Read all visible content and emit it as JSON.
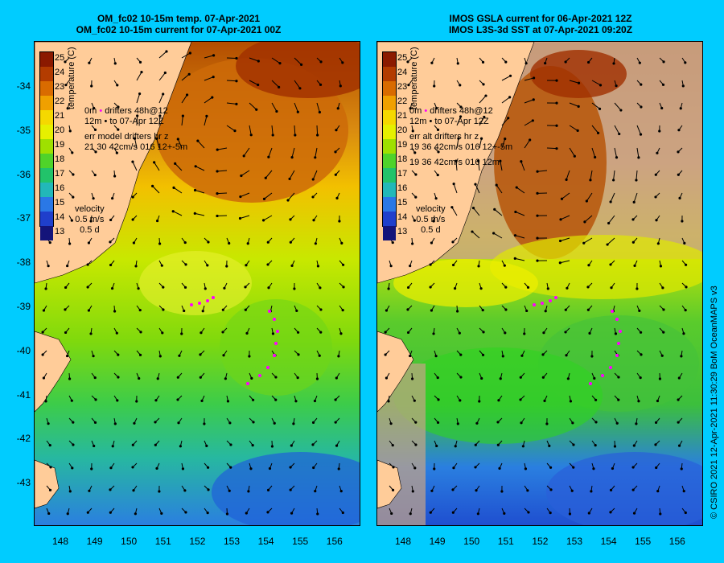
{
  "left": {
    "title_line1": "OM_fc02 10-15m temp. 07-Apr-2021",
    "title_line2": "OM_fc02 10-15m current for 07-Apr-2021 00Z",
    "legend_drifters": "drifters 48h@12",
    "legend_to": "to 07-Apr 12Z",
    "legend_err1": "err model drifters hr z",
    "legend_err2": "21 30 42cm/s 016 12+-5m",
    "legend_depth_label": "0m",
    "legend_depth_label2": "12m"
  },
  "right": {
    "title_line1": "IMOS GSLA current for 06-Apr-2021 12Z",
    "title_line2": "IMOS L3S-3d SST at 07-Apr-2021 09:20Z",
    "legend_drifters": "drifters 48h@12",
    "legend_to": "to 07-Apr 12Z",
    "legend_err1": "err alt drifters hr z",
    "legend_err2": "19 36 42cm/s 016 12+-5m",
    "legend_err3": "19 36 42cm/s 016 12m",
    "legend_depth_label": "0m",
    "legend_depth_label2": "12m"
  },
  "colorbar": {
    "title": "temperature (C)",
    "labels": [
      "25",
      "24",
      "23",
      "22",
      "21",
      "20",
      "19",
      "18",
      "17",
      "16",
      "15",
      "14",
      "13"
    ],
    "colors": [
      "#8b1a00",
      "#b33c00",
      "#d96b00",
      "#f0a000",
      "#f5d800",
      "#e6f000",
      "#9fe000",
      "#4fd32a",
      "#22c36a",
      "#22b8b8",
      "#2a78e6",
      "#1f3fcc",
      "#14147a"
    ]
  },
  "velocity": {
    "label": "velocity",
    "speed": "0.5 m/s",
    "duration": "0.5 d"
  },
  "y_ticks": [
    "-34",
    "-35",
    "-36",
    "-37",
    "-38",
    "-39",
    "-40",
    "-41",
    "-42",
    "-43"
  ],
  "x_ticks": [
    "148",
    "149",
    "150",
    "151",
    "152",
    "153",
    "154",
    "155",
    "156"
  ],
  "credit": "© CSIRO 2021   12-Apr-2021 11:30:29 BoM OceanMAPS v3"
}
